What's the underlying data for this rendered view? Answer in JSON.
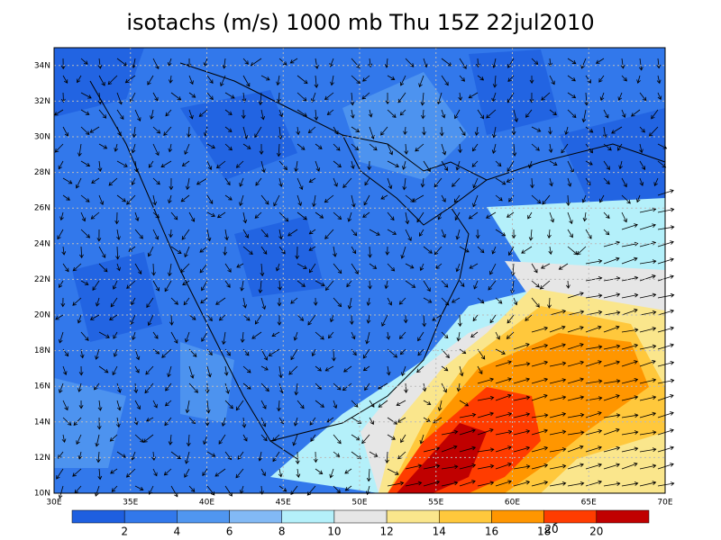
{
  "title": "isotachs (m/s) 1000 mb Thu 15Z 22jul2010",
  "map": {
    "lon_ticks": [
      "30E",
      "35E",
      "40E",
      "45E",
      "50E",
      "55E",
      "60E",
      "65E",
      "70E"
    ],
    "lat_ticks": [
      "10N",
      "12N",
      "14N",
      "16N",
      "18N",
      "20N",
      "22N",
      "24N",
      "26N",
      "28N",
      "30N",
      "32N",
      "34N"
    ]
  },
  "colorbar": {
    "colors": [
      "#1e5fe0",
      "#3278eb",
      "#5096f0",
      "#82b9f5",
      "#b4f0fa",
      "#e6e6e6",
      "#fae68c",
      "#ffc83c",
      "#ff9600",
      "#ff3c00",
      "#c00000"
    ],
    "labels": [
      2,
      4,
      6,
      8,
      10,
      12,
      14,
      16,
      18,
      20
    ]
  },
  "reference_vector": "20"
}
